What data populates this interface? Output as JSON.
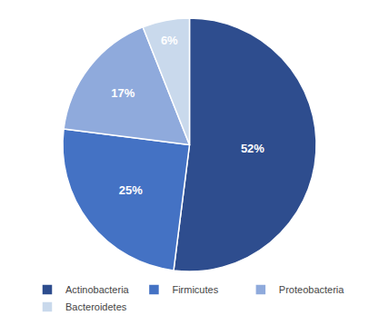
{
  "chart_data": {
    "type": "pie",
    "categories": [
      "Actinobacteria",
      "Firmicutes",
      "Proteobacteria",
      "Bacteroidetes"
    ],
    "values": [
      52,
      25,
      17,
      6
    ],
    "value_labels": [
      "52%",
      "25%",
      "17%",
      "6%"
    ],
    "colors": [
      "#2E4D8E",
      "#4472C4",
      "#8FAADC",
      "#C9D9EC"
    ],
    "data_labels": true,
    "legend": "bottom"
  }
}
